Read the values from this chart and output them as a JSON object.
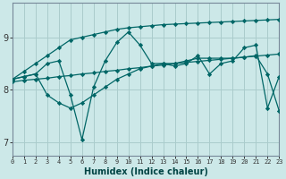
{
  "xlabel": "Humidex (Indice chaleur)",
  "bg_color": "#cce8e8",
  "grid_color": "#aacccc",
  "line_color": "#006666",
  "xlim": [
    0,
    23
  ],
  "ylim": [
    6.75,
    9.65
  ],
  "yticks": [
    7,
    8,
    9
  ],
  "xticks": [
    0,
    1,
    2,
    3,
    4,
    5,
    6,
    7,
    8,
    9,
    10,
    11,
    12,
    13,
    14,
    15,
    16,
    17,
    18,
    19,
    20,
    21,
    22,
    23
  ],
  "line1_x": [
    0,
    1,
    2,
    3,
    4,
    5,
    6,
    7,
    8,
    9,
    10,
    11,
    12,
    13,
    14,
    15,
    16,
    17,
    18,
    19,
    20,
    21,
    22,
    23
  ],
  "line1_y": [
    8.2,
    8.35,
    8.5,
    8.65,
    8.8,
    8.95,
    9.0,
    9.05,
    9.1,
    9.15,
    9.18,
    9.2,
    9.22,
    9.24,
    9.25,
    9.26,
    9.27,
    9.28,
    9.29,
    9.3,
    9.31,
    9.32,
    9.33,
    9.34
  ],
  "line2_x": [
    0,
    1,
    2,
    3,
    4,
    5,
    6,
    7,
    8,
    9,
    10,
    11,
    12,
    13,
    14,
    15,
    16,
    17,
    18,
    19,
    20,
    21,
    22,
    23
  ],
  "line2_y": [
    8.15,
    8.18,
    8.2,
    8.22,
    8.25,
    8.27,
    8.3,
    8.32,
    8.35,
    8.37,
    8.4,
    8.42,
    8.45,
    8.47,
    8.5,
    8.52,
    8.54,
    8.56,
    8.58,
    8.6,
    8.62,
    8.64,
    8.66,
    8.68
  ],
  "line3_x": [
    0,
    1,
    2,
    3,
    4,
    5,
    6,
    7,
    8,
    9,
    10,
    11,
    12,
    13,
    14,
    15,
    16,
    17,
    18,
    19,
    20,
    21,
    22,
    23
  ],
  "line3_y": [
    8.2,
    8.25,
    8.3,
    8.5,
    8.55,
    7.9,
    7.05,
    8.05,
    8.55,
    8.9,
    9.1,
    8.85,
    8.5,
    8.5,
    8.45,
    8.5,
    8.65,
    8.3,
    8.5,
    8.55,
    8.8,
    8.85,
    7.65,
    8.25
  ],
  "line4_x": [
    0,
    1,
    2,
    3,
    4,
    5,
    6,
    7,
    8,
    9,
    10,
    11,
    12,
    13,
    14,
    15,
    16,
    17,
    18,
    19,
    20,
    21,
    22,
    23
  ],
  "line4_y": [
    8.2,
    8.25,
    8.3,
    7.9,
    7.75,
    7.65,
    7.75,
    7.9,
    8.05,
    8.2,
    8.3,
    8.4,
    8.45,
    8.5,
    8.5,
    8.55,
    8.6,
    8.6,
    8.6,
    8.6,
    8.62,
    8.65,
    8.3,
    7.6
  ]
}
